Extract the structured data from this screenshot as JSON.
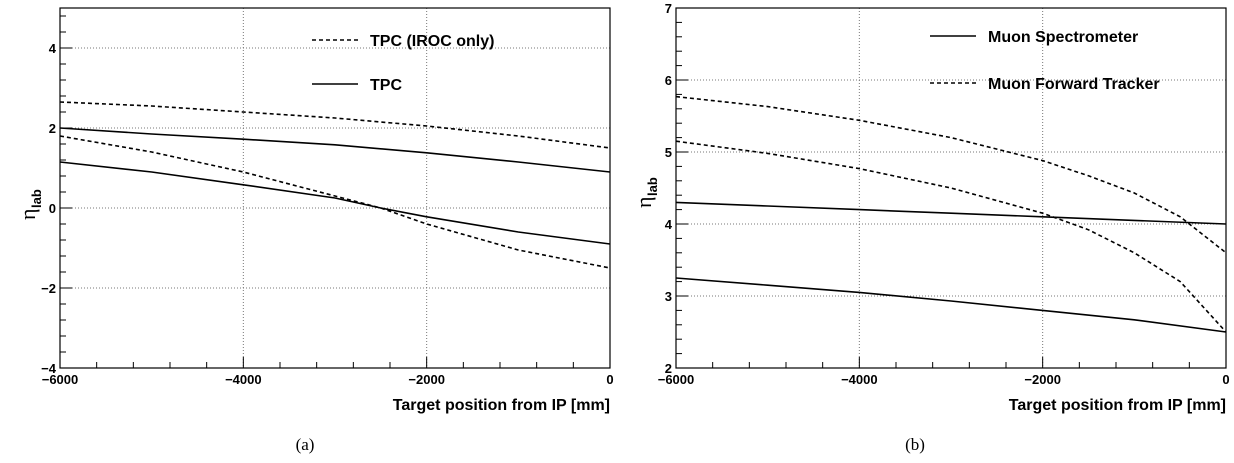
{
  "chart_data": [
    {
      "type": "line",
      "sublabel": "(a)",
      "xlabel": "Target position from IP [mm]",
      "ylabel": "η",
      "ylabel_sub": "lab",
      "xlim": [
        -6000,
        0
      ],
      "ylim": [
        -4,
        5
      ],
      "xticks": [
        -6000,
        -4000,
        -2000,
        0
      ],
      "yticks": [
        -4,
        -2,
        0,
        2,
        4
      ],
      "xtick_labels": [
        "−6000",
        "−4000",
        "−2000",
        "0"
      ],
      "ytick_labels": [
        "−4",
        "−2",
        "0",
        "2",
        "4"
      ],
      "grid": true,
      "legend": [
        {
          "label": "TPC (IROC only)",
          "style": "dashed"
        },
        {
          "label": "TPC",
          "style": "solid"
        }
      ],
      "series": [
        {
          "legend": "TPC (IROC only)",
          "style": "dashed",
          "x": [
            -6000,
            -5000,
            -4000,
            -3000,
            -2000,
            -1000,
            0
          ],
          "y": [
            2.65,
            2.55,
            2.4,
            2.25,
            2.05,
            1.8,
            1.5
          ]
        },
        {
          "legend": "TPC (IROC only)",
          "style": "dashed",
          "x": [
            -6000,
            -5000,
            -4000,
            -3000,
            -2500,
            -2000,
            -1000,
            0
          ],
          "y": [
            1.8,
            1.4,
            0.9,
            0.3,
            0.0,
            -0.4,
            -1.05,
            -1.5
          ]
        },
        {
          "legend": "TPC",
          "style": "solid",
          "x": [
            -6000,
            -5000,
            -4000,
            -3000,
            -2000,
            -1000,
            0
          ],
          "y": [
            2.0,
            1.85,
            1.72,
            1.58,
            1.38,
            1.15,
            0.9
          ]
        },
        {
          "legend": "TPC",
          "style": "solid",
          "x": [
            -6000,
            -5000,
            -4000,
            -3000,
            -2500,
            -2000,
            -1000,
            0
          ],
          "y": [
            1.15,
            0.9,
            0.58,
            0.25,
            0.0,
            -0.22,
            -0.6,
            -0.9
          ]
        }
      ]
    },
    {
      "type": "line",
      "sublabel": "(b)",
      "xlabel": "Target position from IP [mm]",
      "ylabel": "η",
      "ylabel_sub": "lab",
      "xlim": [
        -6000,
        0
      ],
      "ylim": [
        2,
        7
      ],
      "xticks": [
        -6000,
        -4000,
        -2000,
        0
      ],
      "yticks": [
        2,
        3,
        4,
        5,
        6,
        7
      ],
      "xtick_labels": [
        "−6000",
        "−4000",
        "−2000",
        "0"
      ],
      "ytick_labels": [
        "2",
        "3",
        "4",
        "5",
        "6",
        "7"
      ],
      "grid": true,
      "legend": [
        {
          "label": "Muon Spectrometer",
          "style": "solid"
        },
        {
          "label": "Muon Forward Tracker",
          "style": "dashed"
        }
      ],
      "series": [
        {
          "legend": "Muon Spectrometer",
          "style": "solid",
          "x": [
            -6000,
            -5000,
            -4000,
            -3000,
            -2000,
            -1000,
            0
          ],
          "y": [
            4.3,
            4.25,
            4.2,
            4.15,
            4.1,
            4.05,
            4.0
          ]
        },
        {
          "legend": "Muon Spectrometer",
          "style": "solid",
          "x": [
            -6000,
            -5000,
            -4000,
            -3000,
            -2000,
            -1000,
            0
          ],
          "y": [
            3.25,
            3.15,
            3.05,
            2.93,
            2.8,
            2.67,
            2.5
          ]
        },
        {
          "legend": "Muon Forward Tracker",
          "style": "dashed",
          "x": [
            -6000,
            -5000,
            -4000,
            -3000,
            -2000,
            -1500,
            -1000,
            -500,
            0
          ],
          "y": [
            5.77,
            5.63,
            5.44,
            5.2,
            4.88,
            4.67,
            4.43,
            4.1,
            3.6
          ]
        },
        {
          "legend": "Muon Forward Tracker",
          "style": "dashed",
          "x": [
            -6000,
            -5000,
            -4000,
            -3000,
            -2000,
            -1500,
            -1000,
            -500,
            0
          ],
          "y": [
            5.15,
            4.98,
            4.77,
            4.5,
            4.15,
            3.92,
            3.6,
            3.2,
            2.5
          ]
        }
      ]
    }
  ]
}
